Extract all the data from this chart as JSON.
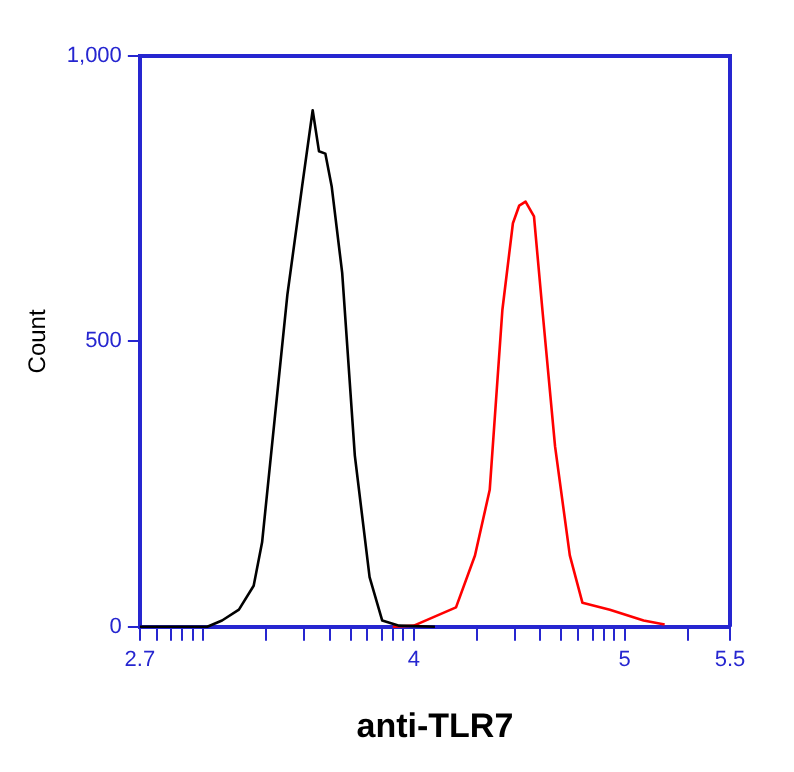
{
  "chart_data": {
    "type": "line",
    "xlabel": "anti-TLR7",
    "ylabel": "Count",
    "series": [
      {
        "color": "#000000",
        "x": [
          2.7,
          3.02,
          3.09,
          3.17,
          3.24,
          3.28,
          3.34,
          3.4,
          3.47,
          3.52,
          3.55,
          3.58,
          3.61,
          3.66,
          3.72,
          3.79,
          3.85,
          3.93,
          4.1
        ],
        "values": [
          0,
          0,
          11,
          30,
          72,
          148,
          365,
          582,
          772,
          905,
          833,
          829,
          772,
          620,
          300,
          87,
          11,
          2,
          0
        ]
      },
      {
        "color": "#ff0000",
        "x": [
          3.9,
          4.0,
          4.2,
          4.29,
          4.36,
          4.42,
          4.47,
          4.5,
          4.53,
          4.57,
          4.61,
          4.67,
          4.74,
          4.8,
          4.93,
          5.09,
          5.19
        ],
        "values": [
          0,
          2,
          34,
          125,
          240,
          555,
          707,
          738,
          745,
          719,
          555,
          316,
          125,
          42,
          30,
          11,
          4
        ]
      }
    ],
    "xlim": [
      2.7,
      5.5
    ],
    "xticks": [
      2.7,
      {
        "value": 2.78,
        "label": null
      },
      {
        "value": 2.85,
        "label": null
      },
      {
        "value": 2.9,
        "label": null
      },
      {
        "value": 2.95,
        "label": null
      },
      {
        "value": 3,
        "label": null
      },
      {
        "value": 3.3,
        "label": null
      },
      {
        "value": 3.48,
        "label": null
      },
      {
        "value": 3.6,
        "label": null
      },
      {
        "value": 3.7,
        "label": null
      },
      {
        "value": 3.78,
        "label": null
      },
      {
        "value": 3.85,
        "label": null
      },
      {
        "value": 3.9,
        "label": null
      },
      {
        "value": 3.95,
        "label": null
      },
      4,
      {
        "value": 4.3,
        "label": null
      },
      {
        "value": 4.48,
        "label": null
      },
      {
        "value": 4.6,
        "label": null
      },
      {
        "value": 4.7,
        "label": null
      },
      {
        "value": 4.78,
        "label": null
      },
      {
        "value": 4.85,
        "label": null
      },
      {
        "value": 4.9,
        "label": null
      },
      {
        "value": 4.95,
        "label": null
      },
      5,
      {
        "value": 5.3,
        "label": null
      },
      5.5
    ],
    "ylim": [
      0,
      1000
    ],
    "yticks": [
      0,
      500,
      {
        "value": 1000,
        "label": "1,000"
      }
    ],
    "grid": false,
    "legend": false,
    "marker": "none",
    "line_style": "solid"
  }
}
